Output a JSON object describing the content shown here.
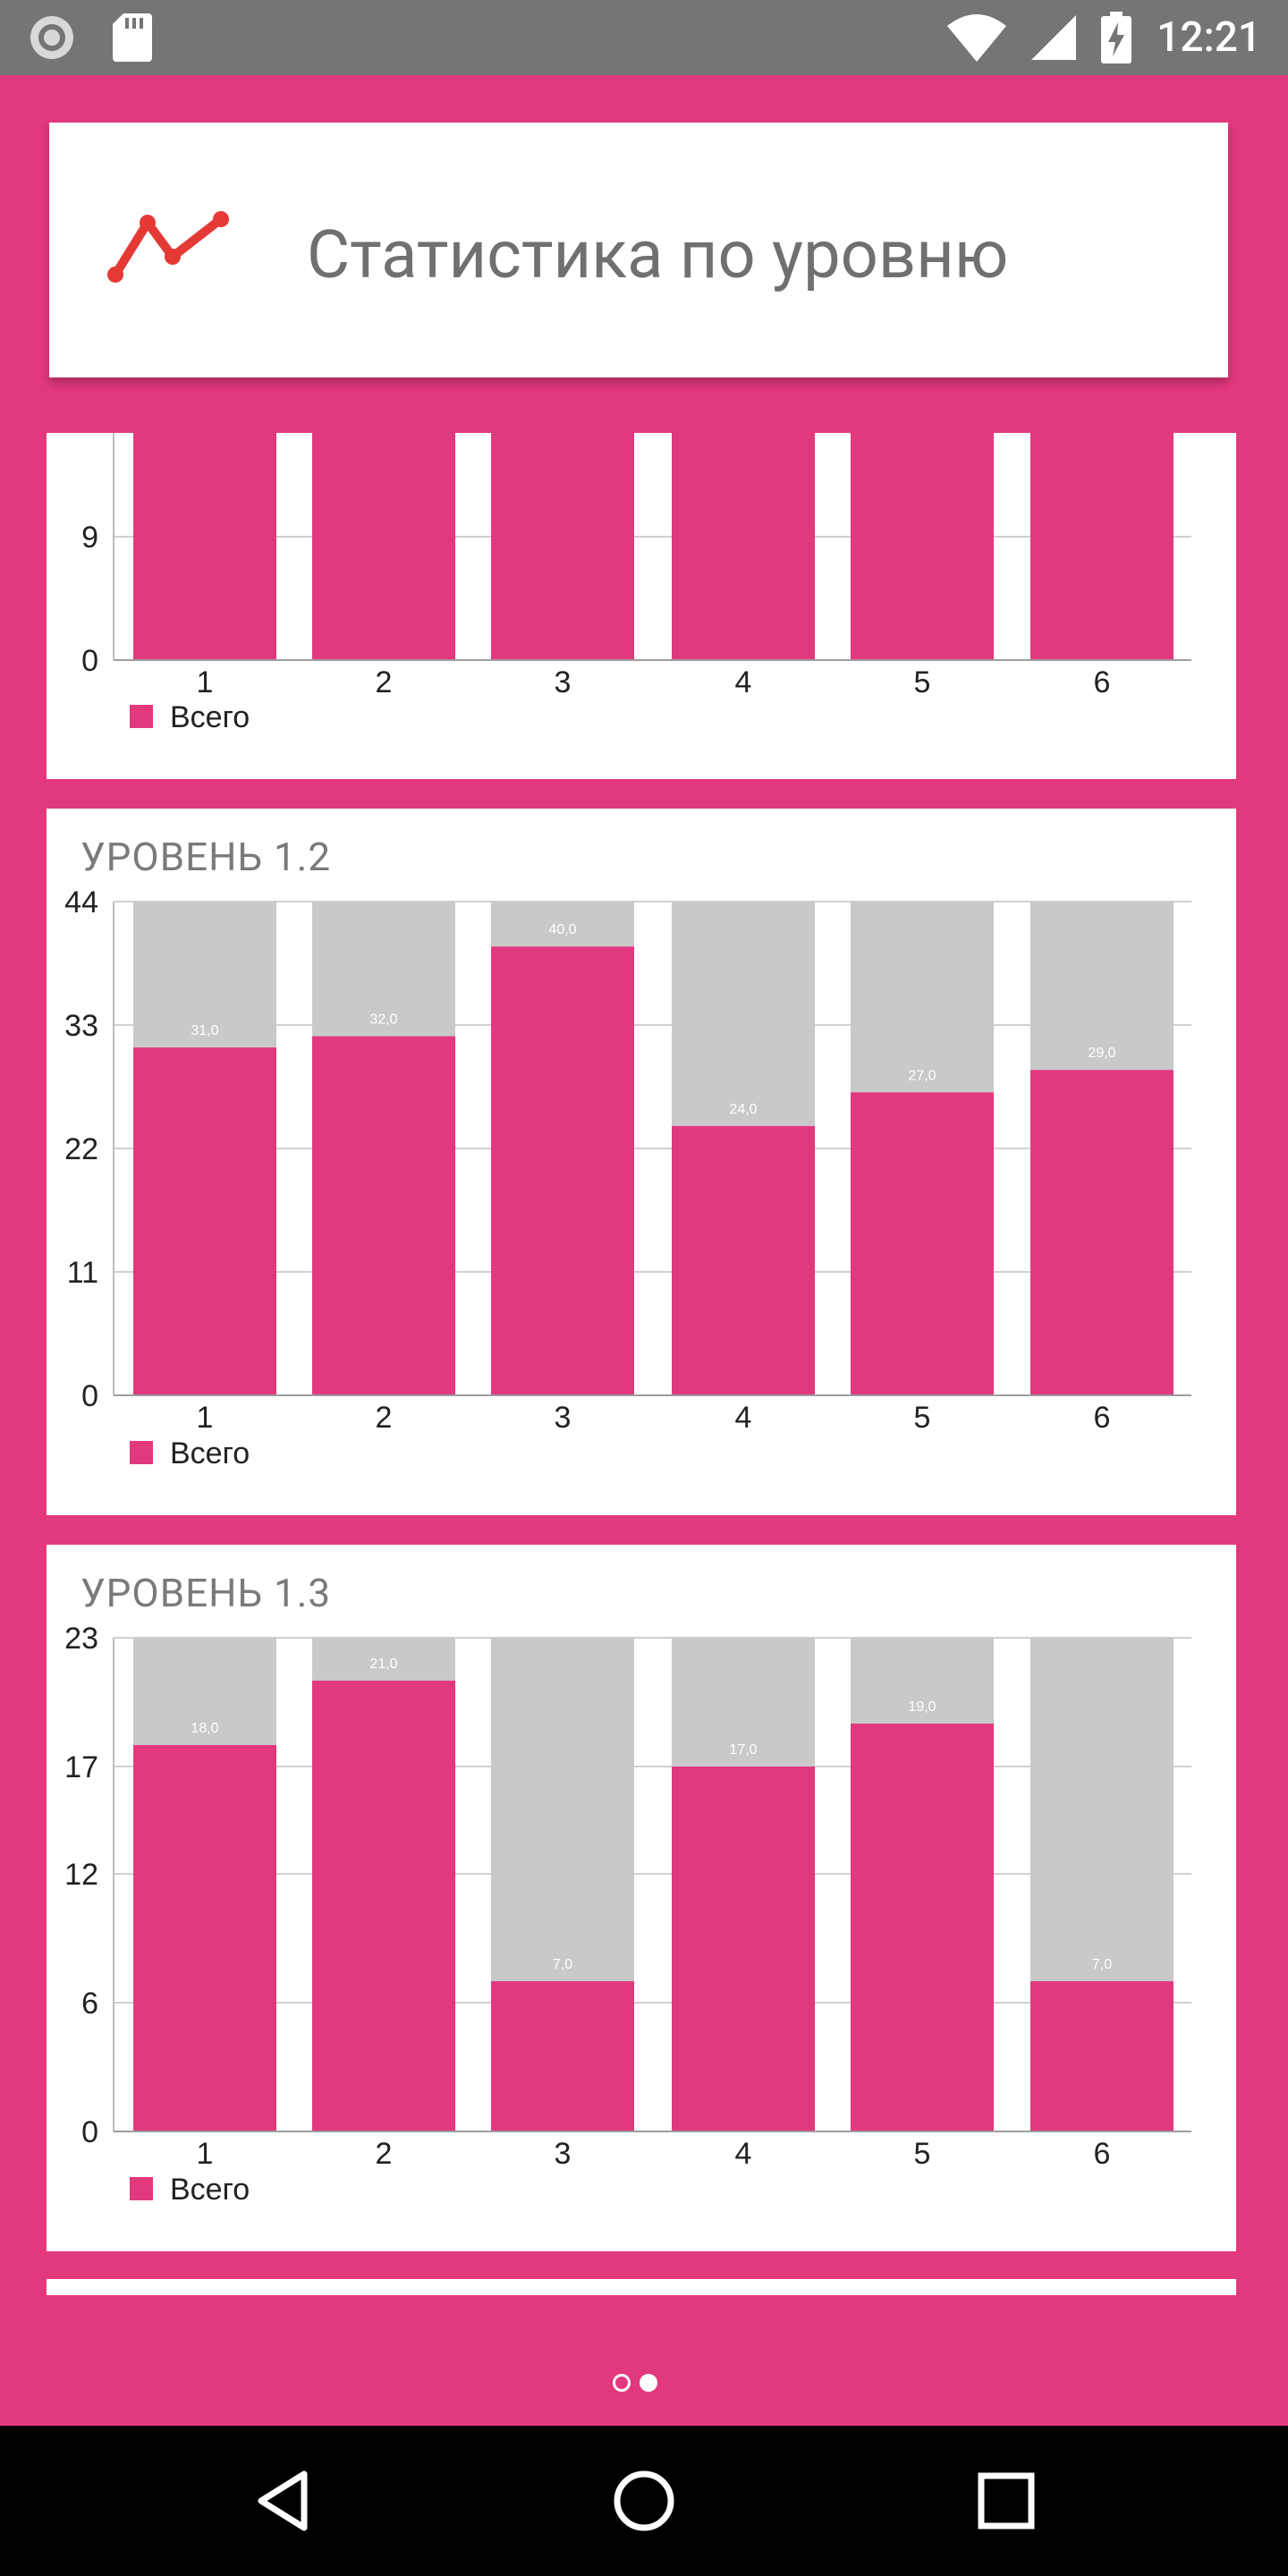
{
  "status_bar": {
    "time": "12:21"
  },
  "header": {
    "title": "Статистика по уровню"
  },
  "legend_label": "Всего",
  "colors": {
    "accent": "#e2387e",
    "remainder": "#c9c9c9"
  },
  "charts": [
    {
      "title": "",
      "chart_data": {
        "type": "bar",
        "stacked": true,
        "categories": [
          "1",
          "2",
          "3",
          "4",
          "5",
          "6"
        ],
        "series": [
          {
            "name": "Всего",
            "values": [
              null,
              null,
              null,
              null,
              null,
              null
            ]
          }
        ],
        "yticks": [
          "0",
          "9"
        ],
        "note": "chart partially scrolled out of view; values not visible"
      }
    },
    {
      "title": "УРОВЕНЬ 1.2",
      "chart_data": {
        "type": "bar",
        "stacked": true,
        "categories": [
          "1",
          "2",
          "3",
          "4",
          "5",
          "6"
        ],
        "series": [
          {
            "name": "Всего",
            "values": [
              31,
              32,
              40,
              24,
              27,
              29
            ]
          }
        ],
        "data_labels": [
          "31,0",
          "32,0",
          "40,0",
          "24,0",
          "27,0",
          "29,0"
        ],
        "ylim": [
          0,
          44
        ],
        "yticks": [
          "0",
          "11",
          "22",
          "33",
          "44"
        ]
      }
    },
    {
      "title": "УРОВЕНЬ 1.3",
      "chart_data": {
        "type": "bar",
        "stacked": true,
        "categories": [
          "1",
          "2",
          "3",
          "4",
          "5",
          "6"
        ],
        "series": [
          {
            "name": "Всего",
            "values": [
              18,
              21,
              7,
              17,
              19,
              7
            ]
          }
        ],
        "data_labels": [
          "18,0",
          "21,0",
          "7,0",
          "17,0",
          "19,0",
          "7,0"
        ],
        "ylim": [
          0,
          23
        ],
        "yticks": [
          "0",
          "6",
          "12",
          "17",
          "23"
        ]
      }
    }
  ]
}
